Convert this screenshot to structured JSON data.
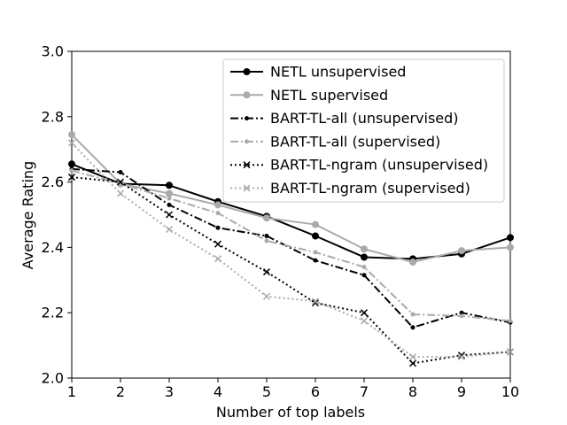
{
  "chart_data": {
    "type": "line",
    "title": "",
    "xlabel": "Number of top labels",
    "ylabel": "Average Rating",
    "xlim": [
      1,
      10
    ],
    "ylim": [
      2.0,
      3.0
    ],
    "x": [
      1,
      2,
      3,
      4,
      5,
      6,
      7,
      8,
      9,
      10
    ],
    "xticks": [
      "1",
      "2",
      "3",
      "4",
      "5",
      "6",
      "7",
      "8",
      "9",
      "10"
    ],
    "yticks": [
      "2.0",
      "2.2",
      "2.4",
      "2.6",
      "2.8",
      "3.0"
    ],
    "grid": false,
    "legend_position": "top-right",
    "series": [
      {
        "name": "NETL unsupervised",
        "values": [
          2.655,
          2.595,
          2.59,
          2.54,
          2.495,
          2.435,
          2.37,
          2.365,
          2.38,
          2.43
        ],
        "color": "#000000",
        "dash": "solid",
        "marker": "circle"
      },
      {
        "name": "NETL supervised",
        "values": [
          2.745,
          2.595,
          2.565,
          2.53,
          2.49,
          2.47,
          2.395,
          2.355,
          2.39,
          2.4
        ],
        "color": "#aaaaaa",
        "dash": "solid",
        "marker": "circle"
      },
      {
        "name": "BART-TL-all (unsupervised)",
        "values": [
          2.64,
          2.63,
          2.53,
          2.46,
          2.435,
          2.36,
          2.315,
          2.155,
          2.2,
          2.17
        ],
        "color": "#000000",
        "dash": "dashdot",
        "marker": "dot"
      },
      {
        "name": "BART-TL-all (supervised)",
        "values": [
          2.635,
          2.595,
          2.55,
          2.505,
          2.42,
          2.385,
          2.34,
          2.195,
          2.19,
          2.175
        ],
        "color": "#aaaaaa",
        "dash": "dashdot",
        "marker": "dot"
      },
      {
        "name": "BART-TL-ngram (unsupervised)",
        "values": [
          2.615,
          2.6,
          2.5,
          2.41,
          2.325,
          2.23,
          2.2,
          2.045,
          2.07,
          2.08
        ],
        "color": "#000000",
        "dash": "dotted",
        "marker": "x"
      },
      {
        "name": "BART-TL-ngram (supervised)",
        "values": [
          2.72,
          2.565,
          2.455,
          2.365,
          2.25,
          2.235,
          2.175,
          2.065,
          2.065,
          2.08
        ],
        "color": "#aaaaaa",
        "dash": "dotted",
        "marker": "x"
      }
    ]
  }
}
